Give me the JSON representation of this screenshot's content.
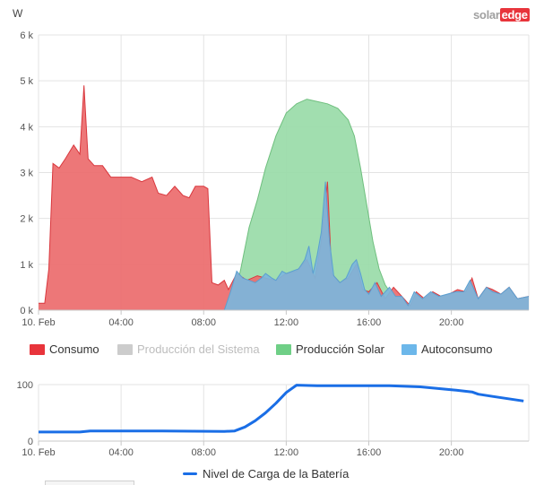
{
  "header": {
    "y_unit": "W",
    "logo_part1": "solar",
    "logo_part2": "edge"
  },
  "legend": [
    {
      "key": "consumo",
      "label": "Consumo",
      "color": "#e8343b",
      "active": true
    },
    {
      "key": "sistema",
      "label": "Producción del Sistema",
      "color": "#cccccc",
      "active": false
    },
    {
      "key": "solar",
      "label": "Producción Solar",
      "color": "#6fcf86",
      "active": true
    },
    {
      "key": "auto",
      "label": "Autoconsumo",
      "color": "#6cb7ea",
      "active": true
    }
  ],
  "battery_legend": {
    "label": "Nivel de Carga de la Batería",
    "color": "#1a6ee6"
  },
  "colors": {
    "consumo_fill": "#ec6b6c",
    "consumo_line": "#d9373d",
    "solar_fill": "#99dba8",
    "solar_line": "#6fbf7e",
    "auto_fill": "#7cb6dc",
    "auto_line": "#5b9fd0",
    "battery_line": "#1a6ee6",
    "grid": "#e3e3e3",
    "axis": "#c8c8c8",
    "tick_text": "#555555"
  },
  "chart_data": [
    {
      "type": "area",
      "x_unit": "hours",
      "ylabel": "W",
      "ylim": [
        0,
        6000
      ],
      "y_ticks": [
        0,
        1000,
        2000,
        3000,
        4000,
        5000,
        6000
      ],
      "y_tick_labels": [
        "0 k",
        "1 k",
        "2 k",
        "3 k",
        "4 k",
        "5 k",
        "6 k"
      ],
      "xlim": [
        0,
        23.75
      ],
      "x_ticks": [
        0,
        4,
        8,
        12,
        16,
        20
      ],
      "x_tick_labels": [
        "10. Feb",
        "04:00",
        "08:00",
        "12:00",
        "16:00",
        "20:00"
      ],
      "series": [
        {
          "name": "Producción Solar",
          "key": "solar",
          "points": [
            [
              0,
              0
            ],
            [
              9.2,
              0
            ],
            [
              9.5,
              300
            ],
            [
              9.8,
              900
            ],
            [
              10.2,
              1800
            ],
            [
              10.6,
              2400
            ],
            [
              11.0,
              3100
            ],
            [
              11.5,
              3800
            ],
            [
              12.0,
              4300
            ],
            [
              12.5,
              4500
            ],
            [
              13.0,
              4600
            ],
            [
              13.5,
              4550
            ],
            [
              14.0,
              4500
            ],
            [
              14.5,
              4400
            ],
            [
              15.0,
              4150
            ],
            [
              15.3,
              3800
            ],
            [
              15.6,
              3100
            ],
            [
              15.9,
              2300
            ],
            [
              16.2,
              1500
            ],
            [
              16.5,
              900
            ],
            [
              16.8,
              550
            ],
            [
              17.1,
              350
            ],
            [
              17.4,
              150
            ],
            [
              17.7,
              40
            ],
            [
              18.0,
              0
            ],
            [
              23.75,
              0
            ]
          ]
        },
        {
          "name": "Consumo",
          "key": "consumo",
          "points": [
            [
              0,
              150
            ],
            [
              0.3,
              150
            ],
            [
              0.5,
              900
            ],
            [
              0.7,
              3200
            ],
            [
              1.0,
              3100
            ],
            [
              1.3,
              3300
            ],
            [
              1.7,
              3600
            ],
            [
              2.0,
              3400
            ],
            [
              2.2,
              4900
            ],
            [
              2.4,
              3300
            ],
            [
              2.7,
              3150
            ],
            [
              3.1,
              3150
            ],
            [
              3.5,
              2900
            ],
            [
              4.0,
              2900
            ],
            [
              4.5,
              2900
            ],
            [
              5.0,
              2800
            ],
            [
              5.5,
              2900
            ],
            [
              5.8,
              2550
            ],
            [
              6.2,
              2500
            ],
            [
              6.6,
              2700
            ],
            [
              7.0,
              2500
            ],
            [
              7.3,
              2450
            ],
            [
              7.6,
              2700
            ],
            [
              8.0,
              2700
            ],
            [
              8.2,
              2650
            ],
            [
              8.4,
              600
            ],
            [
              8.7,
              550
            ],
            [
              9.0,
              650
            ],
            [
              9.2,
              450
            ],
            [
              9.6,
              800
            ],
            [
              10.1,
              650
            ],
            [
              10.6,
              750
            ],
            [
              11.0,
              700
            ],
            [
              11.5,
              650
            ],
            [
              12.0,
              800
            ],
            [
              12.5,
              850
            ],
            [
              13.0,
              1100
            ],
            [
              13.4,
              700
            ],
            [
              13.7,
              1500
            ],
            [
              14.0,
              2800
            ],
            [
              14.2,
              800
            ],
            [
              14.6,
              600
            ],
            [
              15.0,
              700
            ],
            [
              15.4,
              1000
            ],
            [
              15.7,
              450
            ],
            [
              16.0,
              400
            ],
            [
              16.4,
              600
            ],
            [
              16.8,
              250
            ],
            [
              17.2,
              500
            ],
            [
              17.6,
              300
            ],
            [
              18.0,
              100
            ],
            [
              18.3,
              400
            ],
            [
              18.7,
              250
            ],
            [
              19.1,
              400
            ],
            [
              19.5,
              300
            ],
            [
              19.9,
              350
            ],
            [
              20.3,
              450
            ],
            [
              20.7,
              400
            ],
            [
              21.0,
              700
            ],
            [
              21.3,
              250
            ],
            [
              21.7,
              500
            ],
            [
              22.0,
              450
            ],
            [
              22.4,
              350
            ],
            [
              22.8,
              500
            ],
            [
              23.2,
              250
            ],
            [
              23.75,
              300
            ]
          ]
        },
        {
          "name": "Autoconsumo",
          "key": "auto",
          "points": [
            [
              0,
              0
            ],
            [
              9.0,
              0
            ],
            [
              9.3,
              400
            ],
            [
              9.6,
              850
            ],
            [
              9.9,
              700
            ],
            [
              10.2,
              650
            ],
            [
              10.5,
              600
            ],
            [
              10.8,
              700
            ],
            [
              11.0,
              800
            ],
            [
              11.3,
              700
            ],
            [
              11.5,
              650
            ],
            [
              11.8,
              850
            ],
            [
              12.0,
              800
            ],
            [
              12.3,
              850
            ],
            [
              12.6,
              900
            ],
            [
              12.9,
              1100
            ],
            [
              13.1,
              1400
            ],
            [
              13.3,
              800
            ],
            [
              13.5,
              1200
            ],
            [
              13.7,
              1700
            ],
            [
              13.9,
              2800
            ],
            [
              14.1,
              1500
            ],
            [
              14.3,
              750
            ],
            [
              14.6,
              600
            ],
            [
              14.9,
              700
            ],
            [
              15.2,
              1000
            ],
            [
              15.4,
              1100
            ],
            [
              15.6,
              800
            ],
            [
              15.8,
              450
            ],
            [
              16.0,
              350
            ],
            [
              16.3,
              600
            ],
            [
              16.6,
              300
            ],
            [
              17.0,
              500
            ],
            [
              17.3,
              300
            ],
            [
              17.6,
              300
            ],
            [
              17.9,
              100
            ],
            [
              18.2,
              400
            ],
            [
              18.6,
              250
            ],
            [
              19.0,
              400
            ],
            [
              19.4,
              300
            ],
            [
              19.8,
              350
            ],
            [
              20.2,
              400
            ],
            [
              20.6,
              400
            ],
            [
              20.9,
              650
            ],
            [
              21.3,
              250
            ],
            [
              21.7,
              500
            ],
            [
              22.0,
              400
            ],
            [
              22.4,
              350
            ],
            [
              22.8,
              500
            ],
            [
              23.2,
              250
            ],
            [
              23.75,
              300
            ]
          ]
        }
      ]
    },
    {
      "type": "line",
      "x_unit": "hours",
      "ylabel": "",
      "ylim": [
        0,
        100
      ],
      "y_ticks": [
        0,
        100
      ],
      "y_tick_labels": [
        "0",
        "100"
      ],
      "xlim": [
        0,
        23.75
      ],
      "x_ticks": [
        0,
        4,
        8,
        12,
        16,
        20
      ],
      "x_tick_labels": [
        "10. Feb",
        "04:00",
        "08:00",
        "12:00",
        "16:00",
        "20:00"
      ],
      "series": [
        {
          "name": "Nivel de Carga de la Batería",
          "key": "bateria",
          "points": [
            [
              0,
              16
            ],
            [
              2.0,
              16
            ],
            [
              2.5,
              18
            ],
            [
              6.0,
              18
            ],
            [
              9.0,
              17
            ],
            [
              9.5,
              18
            ],
            [
              10.0,
              25
            ],
            [
              10.5,
              36
            ],
            [
              11.0,
              50
            ],
            [
              11.5,
              67
            ],
            [
              12.0,
              86
            ],
            [
              12.5,
              99
            ],
            [
              13.5,
              98
            ],
            [
              17.0,
              98
            ],
            [
              18.5,
              96
            ],
            [
              20.0,
              91
            ],
            [
              21.0,
              87
            ],
            [
              21.3,
              83
            ],
            [
              22.0,
              79
            ],
            [
              23.5,
              71
            ]
          ]
        }
      ]
    }
  ]
}
